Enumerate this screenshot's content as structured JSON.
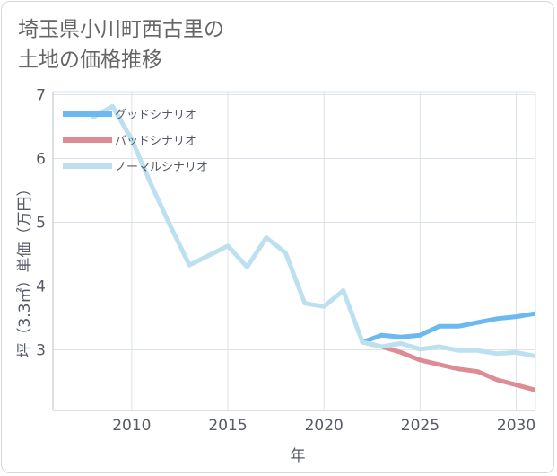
{
  "title_lines": [
    "埼玉県小川町西古里の",
    "土地の価格推移"
  ],
  "chart_data": {
    "type": "line",
    "title": "埼玉県小川町西古里の土地の価格推移",
    "xlabel": "年",
    "ylabel": "坪（3.3㎡）単価（万円）",
    "xlim": [
      2005.9,
      2031.0
    ],
    "ylim": [
      2.05,
      7.05
    ],
    "xticks": [
      2010,
      2015,
      2020,
      2025,
      2030
    ],
    "yticks": [
      3,
      4,
      5,
      6,
      7
    ],
    "grid": true,
    "legend_position": "top-left",
    "series": [
      {
        "name": "グッドシナリオ",
        "color": "#6cb8f0",
        "x": [
          2022,
          2023,
          2024,
          2025,
          2026,
          2027,
          2028,
          2029,
          2030,
          2031
        ],
        "y": [
          3.12,
          3.23,
          3.2,
          3.23,
          3.37,
          3.37,
          3.43,
          3.49,
          3.52,
          3.57
        ]
      },
      {
        "name": "バッドシナリオ",
        "color": "#dc8c92",
        "x": [
          2022,
          2023,
          2024,
          2025,
          2026,
          2027,
          2028,
          2029,
          2030,
          2031
        ],
        "y": [
          3.12,
          3.05,
          2.96,
          2.84,
          2.77,
          2.7,
          2.66,
          2.53,
          2.45,
          2.37
        ]
      },
      {
        "name": "ノーマルシナリオ",
        "color": "#bde0f0",
        "x": [
          2008,
          2009,
          2010,
          2011,
          2012,
          2013,
          2014,
          2015,
          2016,
          2017,
          2018,
          2019,
          2020,
          2021,
          2022,
          2023,
          2024,
          2025,
          2026,
          2027,
          2028,
          2029,
          2030,
          2031
        ],
        "y": [
          6.65,
          6.82,
          6.3,
          5.6,
          4.95,
          4.33,
          4.48,
          4.63,
          4.3,
          4.76,
          4.52,
          3.73,
          3.68,
          3.93,
          3.12,
          3.05,
          3.1,
          3.01,
          3.05,
          2.99,
          2.99,
          2.94,
          2.96,
          2.9
        ]
      }
    ]
  }
}
